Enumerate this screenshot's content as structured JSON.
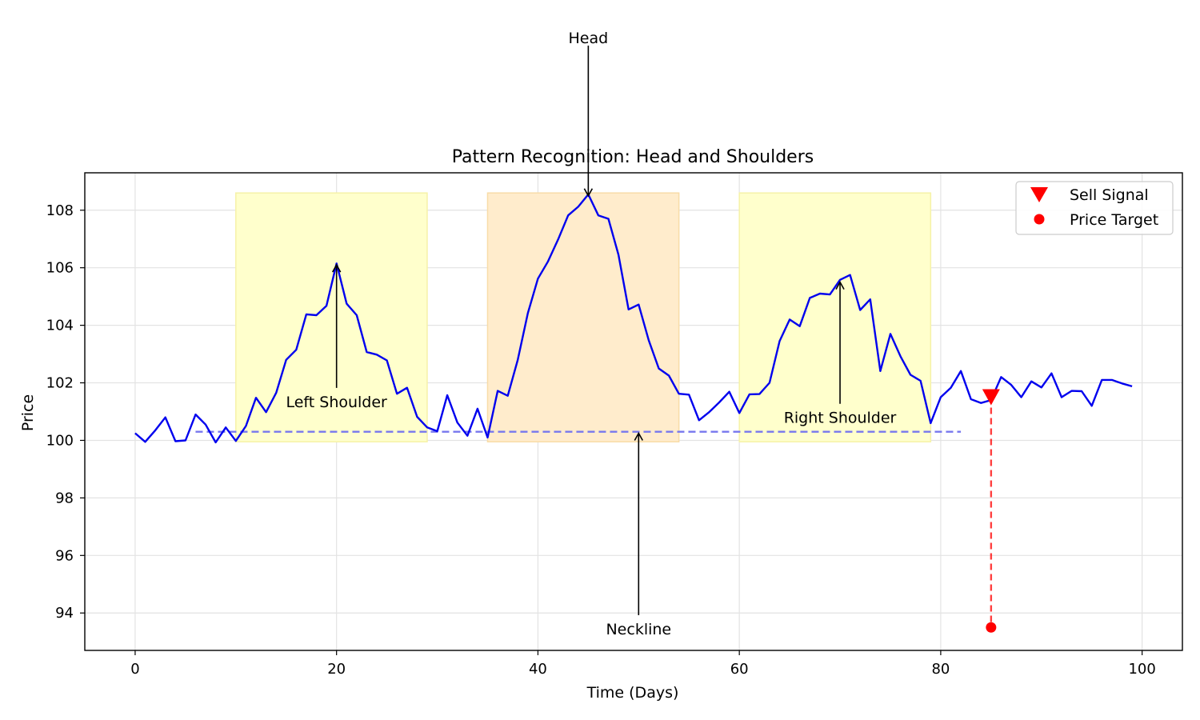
{
  "chart_data": {
    "type": "line",
    "title": "Pattern Recognition: Head and Shoulders",
    "xlabel": "Time (Days)",
    "ylabel": "Price",
    "xlim": [
      -5,
      104
    ],
    "ylim": [
      92.7,
      109.3
    ],
    "xticks": [
      0,
      20,
      40,
      60,
      80,
      100
    ],
    "yticks": [
      94,
      96,
      98,
      100,
      102,
      104,
      106,
      108
    ],
    "grid": true,
    "legend_position": "top-right",
    "colors": {
      "price": "#0000ee",
      "neckline": "#7777ee",
      "shoulder_region": "#ffffcc",
      "head_region": "#ffeccc",
      "signal": "#ff0000"
    },
    "series": [
      {
        "x": [
          0,
          1,
          2,
          3,
          4,
          5,
          6,
          7,
          8,
          9,
          10,
          11,
          12,
          13,
          14,
          15,
          16,
          17,
          18,
          19,
          20,
          21,
          22,
          23,
          24,
          25,
          26,
          27,
          28,
          29,
          30,
          31,
          32,
          33,
          34,
          35,
          36,
          37,
          38,
          39,
          40,
          41,
          42,
          43,
          44,
          45,
          46,
          47,
          48,
          49,
          50,
          51,
          52,
          53,
          54,
          55,
          56,
          57,
          58,
          59,
          60,
          61,
          62,
          63,
          64,
          65,
          66,
          67,
          68,
          69,
          70,
          71,
          72,
          73,
          74,
          75,
          76,
          77,
          78,
          79,
          80,
          81,
          82,
          83,
          84,
          85,
          86,
          87,
          88,
          89,
          90,
          91,
          92,
          93,
          94,
          95,
          96,
          97,
          98,
          99
        ],
        "values": [
          100.25,
          99.95,
          100.35,
          100.8,
          99.97,
          100.0,
          100.9,
          100.55,
          99.93,
          100.45,
          99.98,
          100.5,
          101.48,
          100.98,
          101.65,
          102.8,
          103.15,
          104.38,
          104.35,
          104.68,
          106.15,
          104.75,
          104.35,
          103.07,
          102.98,
          102.78,
          101.62,
          101.83,
          100.82,
          100.45,
          100.32,
          101.57,
          100.62,
          100.16,
          101.1,
          100.1,
          101.72,
          101.55,
          102.8,
          104.42,
          105.62,
          106.22,
          106.98,
          107.82,
          108.12,
          108.55,
          107.82,
          107.7,
          106.45,
          104.55,
          104.72,
          103.48,
          102.5,
          102.25,
          101.62,
          101.59,
          100.7,
          100.98,
          101.32,
          101.69,
          100.95,
          101.6,
          101.61,
          102.0,
          103.45,
          104.2,
          103.97,
          104.95,
          105.1,
          105.07,
          105.58,
          105.75,
          104.53,
          104.9,
          102.41,
          103.7,
          102.92,
          102.28,
          102.07,
          100.6,
          101.5,
          101.83,
          102.41,
          101.43,
          101.3,
          101.4,
          102.2,
          101.93,
          101.5,
          102.05,
          101.84,
          102.33,
          101.5,
          101.72,
          101.71,
          101.2,
          102.1,
          102.1,
          101.98,
          101.88
        ]
      }
    ],
    "neckline": {
      "x": [
        6,
        82
      ],
      "y": [
        100.3,
        100.3
      ]
    },
    "regions": [
      {
        "x0": 10,
        "x1": 29,
        "y0": 99.95,
        "y1": 108.6,
        "kind": "shoulder"
      },
      {
        "x0": 35,
        "x1": 54,
        "y0": 99.95,
        "y1": 108.6,
        "kind": "head"
      },
      {
        "x0": 60,
        "x1": 79,
        "y0": 99.95,
        "y1": 108.6,
        "kind": "shoulder"
      }
    ],
    "annotations": [
      {
        "text": "Left Shoulder",
        "target": [
          20,
          106.1
        ],
        "text_at": [
          20,
          101.35
        ]
      },
      {
        "text": "Head",
        "target": [
          45,
          108.5
        ],
        "text_at": [
          45,
          114.0
        ]
      },
      {
        "text": "Right Shoulder",
        "target": [
          70,
          105.5
        ],
        "text_at": [
          70,
          100.8
        ]
      },
      {
        "text": "Neckline",
        "target": [
          50,
          100.25
        ],
        "text_at": [
          50,
          93.45
        ]
      }
    ],
    "sell_signal": {
      "x": 85,
      "y": 101.5
    },
    "price_target": {
      "x": 85,
      "y": 93.5
    },
    "legend": [
      {
        "label": "Sell Signal",
        "marker": "triangle-down"
      },
      {
        "label": "Price Target",
        "marker": "circle"
      }
    ]
  }
}
